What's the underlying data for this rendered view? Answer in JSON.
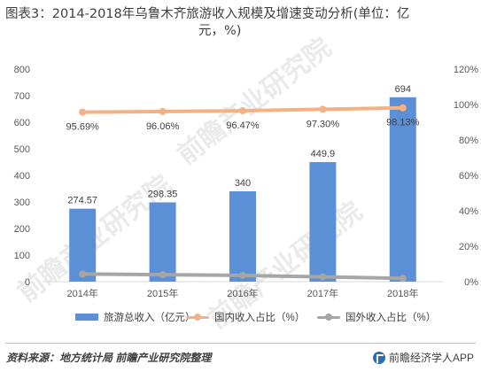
{
  "title_line1": "图表3：2014-2018年乌鲁木齐旅游收入规模及增速变动分析(单位：亿",
  "title_line2": "元，%)",
  "chart_data": {
    "type": "bar",
    "categories": [
      "2014年",
      "2015年",
      "2016年",
      "2017年",
      "2018年"
    ],
    "series": [
      {
        "name": "旅游总收入（亿元）",
        "type": "bar",
        "axis": "left",
        "color": "#5b8fd6",
        "values": [
          274.57,
          298.35,
          340,
          449.9,
          694
        ],
        "labels": [
          "274.57",
          "298.35",
          "340",
          "449.9",
          "694"
        ]
      },
      {
        "name": "国内收入占比（%）",
        "type": "line",
        "axis": "right",
        "color": "#f4b183",
        "values": [
          95.69,
          96.06,
          96.47,
          97.3,
          98.13
        ],
        "labels": [
          "95.69%",
          "96.06%",
          "96.47%",
          "97.30%",
          "98.13%"
        ]
      },
      {
        "name": "国外收入占比（%）",
        "type": "line",
        "axis": "right",
        "color": "#a6a6a6",
        "values": [
          4.31,
          3.94,
          3.53,
          2.7,
          1.87
        ]
      }
    ],
    "y_left": {
      "min": 0,
      "max": 800,
      "ticks": [
        "0",
        "100",
        "200",
        "300",
        "400",
        "500",
        "600",
        "700",
        "800"
      ]
    },
    "y_right": {
      "min": 0,
      "max": 120,
      "ticks": [
        "0%",
        "20%",
        "40%",
        "60%",
        "80%",
        "100%",
        "120%"
      ]
    },
    "grid": false,
    "legend_position": "bottom"
  },
  "footer": {
    "source": "资料来源：地方统计局 前瞻产业研究院整理",
    "brand": "前瞻经济学人APP"
  },
  "watermark": "前瞻产业研究院"
}
